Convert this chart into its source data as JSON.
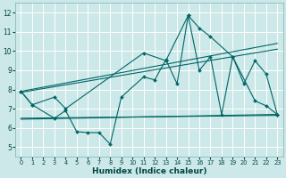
{
  "xlabel": "Humidex (Indice chaleur)",
  "bg_color": "#cce8e8",
  "grid_color": "#ffffff",
  "line_color": "#006666",
  "xlim": [
    -0.5,
    23.5
  ],
  "ylim": [
    4.5,
    12.5
  ],
  "xticks": [
    0,
    1,
    2,
    3,
    4,
    5,
    6,
    7,
    8,
    9,
    10,
    11,
    12,
    13,
    14,
    15,
    16,
    17,
    18,
    19,
    20,
    21,
    22,
    23
  ],
  "yticks": [
    5,
    6,
    7,
    8,
    9,
    10,
    11,
    12
  ],
  "series_upper_x": [
    0,
    1,
    3,
    4,
    11,
    13,
    15,
    16,
    17,
    19,
    21,
    22,
    23
  ],
  "series_upper_y": [
    7.9,
    7.2,
    7.6,
    7.0,
    9.9,
    9.5,
    11.85,
    11.2,
    10.75,
    9.7,
    7.4,
    7.15,
    6.7
  ],
  "series_lower_x": [
    0,
    1,
    3,
    4,
    5,
    6,
    7,
    8,
    9,
    11,
    12,
    13,
    14,
    15,
    16,
    17,
    18,
    19,
    20,
    21,
    22,
    23
  ],
  "series_lower_y": [
    7.9,
    7.2,
    6.5,
    6.9,
    5.8,
    5.75,
    5.75,
    5.15,
    7.6,
    8.65,
    8.5,
    9.55,
    8.3,
    11.85,
    9.0,
    9.7,
    6.7,
    9.7,
    8.3,
    9.5,
    8.8,
    6.7
  ],
  "trend1_x": [
    0,
    23
  ],
  "trend1_y": [
    7.9,
    10.4
  ],
  "trend2_x": [
    0,
    23
  ],
  "trend2_y": [
    7.85,
    10.1
  ],
  "trend3_x": [
    0,
    23
  ],
  "trend3_y": [
    6.5,
    6.65
  ],
  "trend4_x": [
    0,
    23
  ],
  "trend4_y": [
    6.45,
    6.7
  ]
}
